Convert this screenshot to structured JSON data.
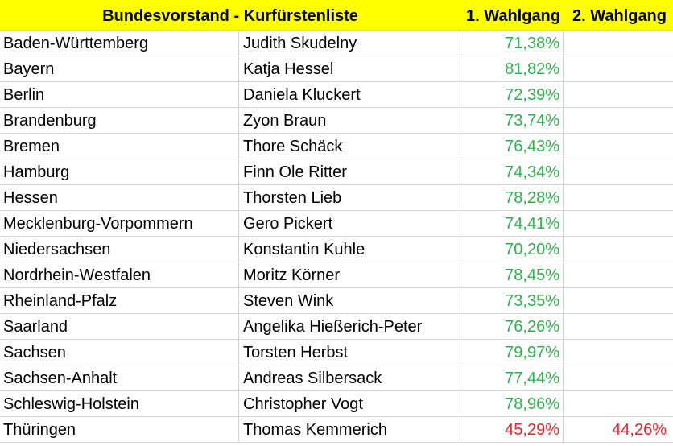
{
  "header": {
    "title": "Bundesvorstand - Kurfürstenliste",
    "col_wahlgang1": "1. Wahlgang",
    "col_wahlgang2": "2. Wahlgang"
  },
  "colors": {
    "header_bg": "#ffff00",
    "pass": "#2fb24c",
    "fail": "#e8262b"
  },
  "rows": [
    {
      "land": "Baden-Württemberg",
      "name": "Judith Skudelny",
      "w1": "71,38%",
      "w2": "",
      "status": "pass"
    },
    {
      "land": "Bayern",
      "name": "Katja Hessel",
      "w1": "81,82%",
      "w2": "",
      "status": "pass"
    },
    {
      "land": "Berlin",
      "name": "Daniela Kluckert",
      "w1": "72,39%",
      "w2": "",
      "status": "pass"
    },
    {
      "land": "Brandenburg",
      "name": "Zyon Braun",
      "w1": "73,74%",
      "w2": "",
      "status": "pass"
    },
    {
      "land": "Bremen",
      "name": "Thore Schäck",
      "w1": "76,43%",
      "w2": "",
      "status": "pass"
    },
    {
      "land": "Hamburg",
      "name": "Finn Ole Ritter",
      "w1": "74,34%",
      "w2": "",
      "status": "pass"
    },
    {
      "land": "Hessen",
      "name": "Thorsten Lieb",
      "w1": "78,28%",
      "w2": "",
      "status": "pass"
    },
    {
      "land": "Mecklenburg-Vorpommern",
      "name": "Gero Pickert",
      "w1": "74,41%",
      "w2": "",
      "status": "pass"
    },
    {
      "land": "Niedersachsen",
      "name": "Konstantin Kuhle",
      "w1": "70,20%",
      "w2": "",
      "status": "pass"
    },
    {
      "land": "Nordrhein-Westfalen",
      "name": "Moritz Körner",
      "w1": "78,45%",
      "w2": "",
      "status": "pass"
    },
    {
      "land": "Rheinland-Pfalz",
      "name": "Steven Wink",
      "w1": "73,35%",
      "w2": "",
      "status": "pass"
    },
    {
      "land": "Saarland",
      "name": "Angelika Hießerich-Peter",
      "w1": "76,26%",
      "w2": "",
      "status": "pass"
    },
    {
      "land": "Sachsen",
      "name": "Torsten Herbst",
      "w1": "79,97%",
      "w2": "",
      "status": "pass"
    },
    {
      "land": "Sachsen-Anhalt",
      "name": "Andreas Silbersack",
      "w1": "77,44%",
      "w2": "",
      "status": "pass"
    },
    {
      "land": "Schleswig-Holstein",
      "name": "Christopher Vogt",
      "w1": "78,96%",
      "w2": "",
      "status": "pass"
    },
    {
      "land": "Thüringen",
      "name": "Thomas Kemmerich",
      "w1": "45,29%",
      "w2": "44,26%",
      "status": "fail"
    }
  ]
}
